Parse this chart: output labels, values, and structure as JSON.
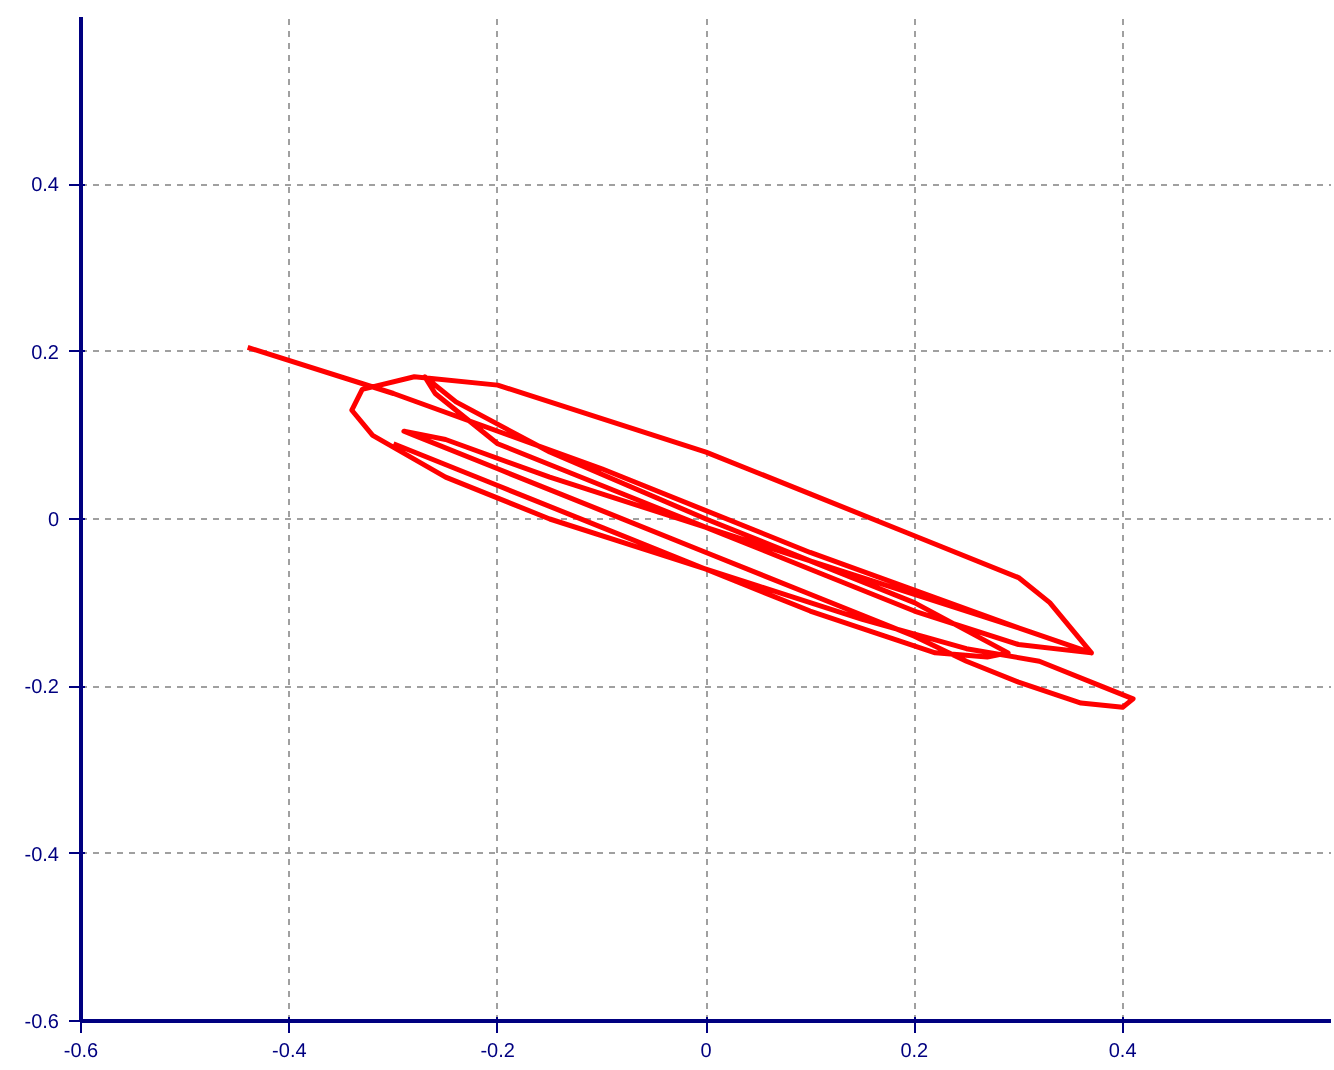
{
  "chart_data": {
    "type": "line",
    "xlim": [
      -0.6,
      0.6
    ],
    "ylim": [
      -0.6,
      0.6
    ],
    "xticks": [
      -0.6,
      -0.4,
      -0.2,
      0,
      0.2,
      0.4
    ],
    "yticks": [
      -0.6,
      -0.4,
      -0.2,
      0,
      0.2,
      0.4
    ],
    "grid": true,
    "line_style": "solid",
    "series": [
      {
        "color": "#ff0000",
        "x": [
          -0.44,
          -0.3,
          -0.1,
          0.1,
          0.3,
          0.37,
          0.33,
          0.3,
          0.2,
          0.1,
          0,
          -0.1,
          -0.2,
          -0.28,
          -0.33,
          -0.34,
          -0.32,
          -0.25,
          -0.15,
          -0.05,
          0.05,
          0.15,
          0.25,
          0.32,
          0.38,
          0.41,
          0.4,
          0.36,
          0.3,
          0.25,
          0.2,
          0.1,
          0,
          -0.1,
          -0.2,
          -0.28,
          -0.29,
          -0.25,
          -0.15,
          0,
          0.1,
          0.2,
          0.3,
          0.37,
          0.3,
          0.2,
          0.1,
          0,
          -0.1,
          -0.2,
          -0.26,
          -0.27,
          -0.24,
          -0.15,
          0,
          0.1,
          0.2,
          0.26,
          0.29,
          0.27,
          0.22,
          0.1,
          0,
          -0.1,
          -0.2,
          -0.3
        ],
        "values": [
          0.205,
          0.15,
          0.06,
          -0.04,
          -0.13,
          -0.16,
          -0.1,
          -0.07,
          -0.02,
          0.03,
          0.08,
          0.12,
          0.16,
          0.17,
          0.155,
          0.13,
          0.1,
          0.05,
          0,
          -0.04,
          -0.08,
          -0.12,
          -0.155,
          -0.17,
          -0.2,
          -0.215,
          -0.225,
          -0.22,
          -0.195,
          -0.17,
          -0.14,
          -0.09,
          -0.04,
          0.01,
          0.06,
          0.1,
          0.105,
          0.095,
          0.05,
          -0.01,
          -0.06,
          -0.11,
          -0.15,
          -0.16,
          -0.13,
          -0.09,
          -0.05,
          -0.01,
          0.04,
          0.09,
          0.15,
          0.17,
          0.14,
          0.08,
          0.0,
          -0.05,
          -0.1,
          -0.14,
          -0.16,
          -0.165,
          -0.16,
          -0.11,
          -0.06,
          -0.01,
          0.04,
          0.09
        ]
      }
    ]
  }
}
